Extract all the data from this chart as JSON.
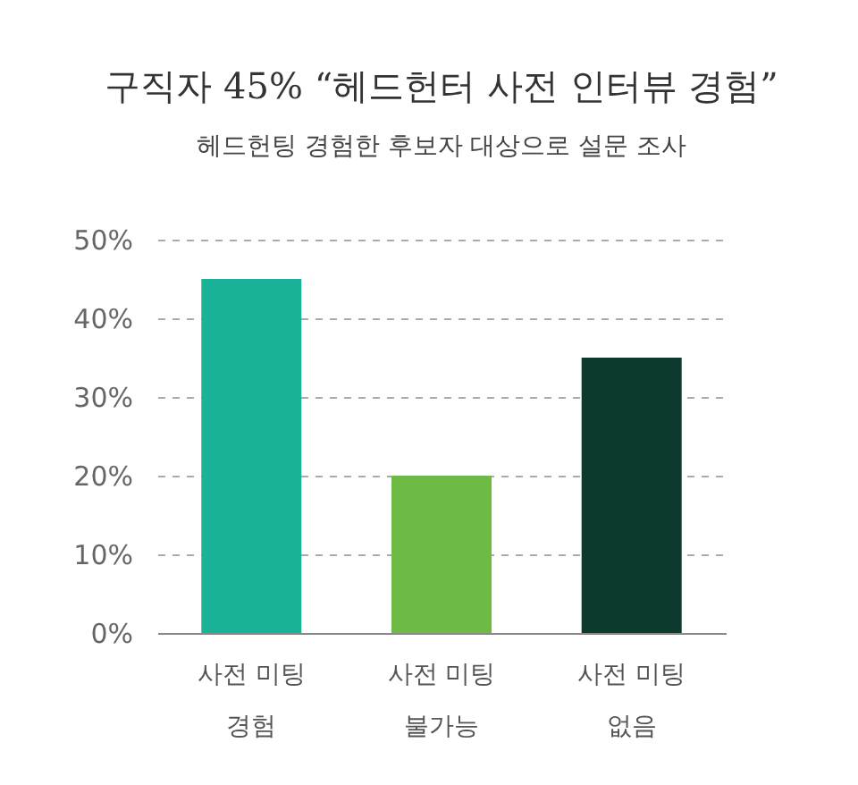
{
  "chart_data": {
    "type": "bar",
    "title": "구직자 45% “헤드헌터 사전 인터뷰 경험”",
    "subtitle": "헤드헌팅 경험한 후보자 대상으로 설문 조사",
    "categories": [
      "사전 미팅 경험",
      "사전 미팅 불가능",
      "사전 미팅 없음"
    ],
    "values": [
      45,
      20,
      35
    ],
    "colors": [
      "#1ab39a",
      "#6dbb45",
      "#0d3a2f"
    ],
    "ylim": [
      0,
      50
    ],
    "yticks": [
      {
        "value": 0,
        "label": "0%"
      },
      {
        "value": 10,
        "label": "10%"
      },
      {
        "value": 20,
        "label": "20%"
      },
      {
        "value": 30,
        "label": "30%"
      },
      {
        "value": 40,
        "label": "40%"
      },
      {
        "value": 50,
        "label": "50%"
      }
    ],
    "grid": "y",
    "legend": false
  }
}
